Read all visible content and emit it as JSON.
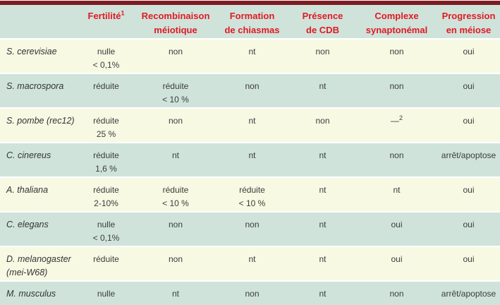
{
  "colors": {
    "top_rule": "#7d1c24",
    "bottom_rule": "#7d1c24",
    "header_background": "#cfe3db",
    "header_text": "#e01a22",
    "row_cream": "#f7f9e3",
    "row_teal": "#cfe3db",
    "body_text": "#3c3c3c",
    "row_separator": "#ffffff"
  },
  "table": {
    "columns": [
      {
        "key": "species",
        "lines": [
          ""
        ]
      },
      {
        "key": "fertilite",
        "lines": [
          "Fertilité"
        ],
        "sup": "1"
      },
      {
        "key": "recombinaison-meiotique",
        "lines": [
          "Recombinaison",
          "méiotique"
        ]
      },
      {
        "key": "formation-chiasmas",
        "lines": [
          "Formation",
          "de chiasmas"
        ]
      },
      {
        "key": "presence-cdb",
        "lines": [
          "Présence",
          "de CDB"
        ]
      },
      {
        "key": "complexe-synaptonemal",
        "lines": [
          "Complexe",
          "synaptonémal"
        ]
      },
      {
        "key": "progression-meiose",
        "lines": [
          "Progression",
          "en méiose"
        ]
      }
    ],
    "rows": [
      {
        "species": {
          "lines": [
            "S. cerevisiae"
          ]
        },
        "cells": [
          {
            "lines": [
              "nulle",
              "< 0,1%"
            ]
          },
          {
            "lines": [
              "non"
            ]
          },
          {
            "lines": [
              "nt"
            ]
          },
          {
            "lines": [
              "non"
            ]
          },
          {
            "lines": [
              "non"
            ]
          },
          {
            "lines": [
              "oui"
            ]
          }
        ]
      },
      {
        "species": {
          "lines": [
            "S. macrospora"
          ]
        },
        "cells": [
          {
            "lines": [
              "réduite"
            ]
          },
          {
            "lines": [
              "réduite",
              "< 10 %"
            ]
          },
          {
            "lines": [
              "non"
            ]
          },
          {
            "lines": [
              "nt"
            ]
          },
          {
            "lines": [
              "non"
            ]
          },
          {
            "lines": [
              "oui"
            ]
          }
        ]
      },
      {
        "species": {
          "lines": [
            "S. pombe (rec12)"
          ]
        },
        "cells": [
          {
            "lines": [
              "réduite",
              "25 %"
            ]
          },
          {
            "lines": [
              "non"
            ]
          },
          {
            "lines": [
              "nt"
            ]
          },
          {
            "lines": [
              "non"
            ]
          },
          {
            "lines": [
              "—"
            ],
            "sup": "2"
          },
          {
            "lines": [
              "oui"
            ]
          }
        ]
      },
      {
        "species": {
          "lines": [
            "C. cinereus"
          ]
        },
        "cells": [
          {
            "lines": [
              "réduite",
              "1,6 %"
            ]
          },
          {
            "lines": [
              "nt"
            ]
          },
          {
            "lines": [
              "nt"
            ]
          },
          {
            "lines": [
              "nt"
            ]
          },
          {
            "lines": [
              "non"
            ]
          },
          {
            "lines": [
              "arrêt/apoptose"
            ]
          }
        ]
      },
      {
        "species": {
          "lines": [
            "A. thaliana"
          ]
        },
        "cells": [
          {
            "lines": [
              "réduite",
              "2-10%"
            ]
          },
          {
            "lines": [
              "réduite",
              "< 10 %"
            ]
          },
          {
            "lines": [
              "réduite",
              "< 10 %"
            ]
          },
          {
            "lines": [
              "nt"
            ]
          },
          {
            "lines": [
              "nt"
            ]
          },
          {
            "lines": [
              "oui"
            ]
          }
        ]
      },
      {
        "species": {
          "lines": [
            "C. elegans"
          ]
        },
        "cells": [
          {
            "lines": [
              "nulle",
              "< 0,1%"
            ]
          },
          {
            "lines": [
              "non"
            ]
          },
          {
            "lines": [
              "non"
            ]
          },
          {
            "lines": [
              "nt"
            ]
          },
          {
            "lines": [
              "oui"
            ]
          },
          {
            "lines": [
              "oui"
            ]
          }
        ]
      },
      {
        "species": {
          "lines": [
            "D. melanogaster",
            "(mei-W68)"
          ]
        },
        "cells": [
          {
            "lines": [
              "réduite"
            ]
          },
          {
            "lines": [
              "non"
            ]
          },
          {
            "lines": [
              "nt"
            ]
          },
          {
            "lines": [
              "nt"
            ]
          },
          {
            "lines": [
              "oui"
            ]
          },
          {
            "lines": [
              "oui"
            ]
          }
        ]
      },
      {
        "species": {
          "lines": [
            "M. musculus"
          ]
        },
        "cells": [
          {
            "lines": [
              "nulle"
            ]
          },
          {
            "lines": [
              "nt"
            ]
          },
          {
            "lines": [
              "non"
            ]
          },
          {
            "lines": [
              "nt"
            ]
          },
          {
            "lines": [
              "non"
            ]
          },
          {
            "lines": [
              "arrêt/apoptose"
            ]
          }
        ]
      }
    ]
  },
  "chart_data": {
    "type": "table",
    "title": "",
    "columns": [
      "",
      "Fertilité¹",
      "Recombinaison méiotique",
      "Formation de chiasmas",
      "Présence de CDB",
      "Complexe synaptonémal",
      "Progression en méiose"
    ],
    "rows": [
      [
        "S. cerevisiae",
        "nulle < 0,1%",
        "non",
        "nt",
        "non",
        "non",
        "oui"
      ],
      [
        "S. macrospora",
        "réduite",
        "réduite < 10 %",
        "non",
        "nt",
        "non",
        "oui"
      ],
      [
        "S. pombe (rec12)",
        "réduite 25 %",
        "non",
        "nt",
        "non",
        "—²",
        "oui"
      ],
      [
        "C. cinereus",
        "réduite 1,6 %",
        "nt",
        "nt",
        "nt",
        "non",
        "arrêt/apoptose"
      ],
      [
        "A. thaliana",
        "réduite 2-10%",
        "réduite < 10 %",
        "réduite < 10 %",
        "nt",
        "nt",
        "oui"
      ],
      [
        "C. elegans",
        "nulle < 0,1%",
        "non",
        "non",
        "nt",
        "oui",
        "oui"
      ],
      [
        "D. melanogaster (mei-W68)",
        "réduite",
        "non",
        "nt",
        "nt",
        "oui",
        "oui"
      ],
      [
        "M. musculus",
        "nulle",
        "nt",
        "non",
        "nt",
        "non",
        "arrêt/apoptose"
      ]
    ]
  }
}
